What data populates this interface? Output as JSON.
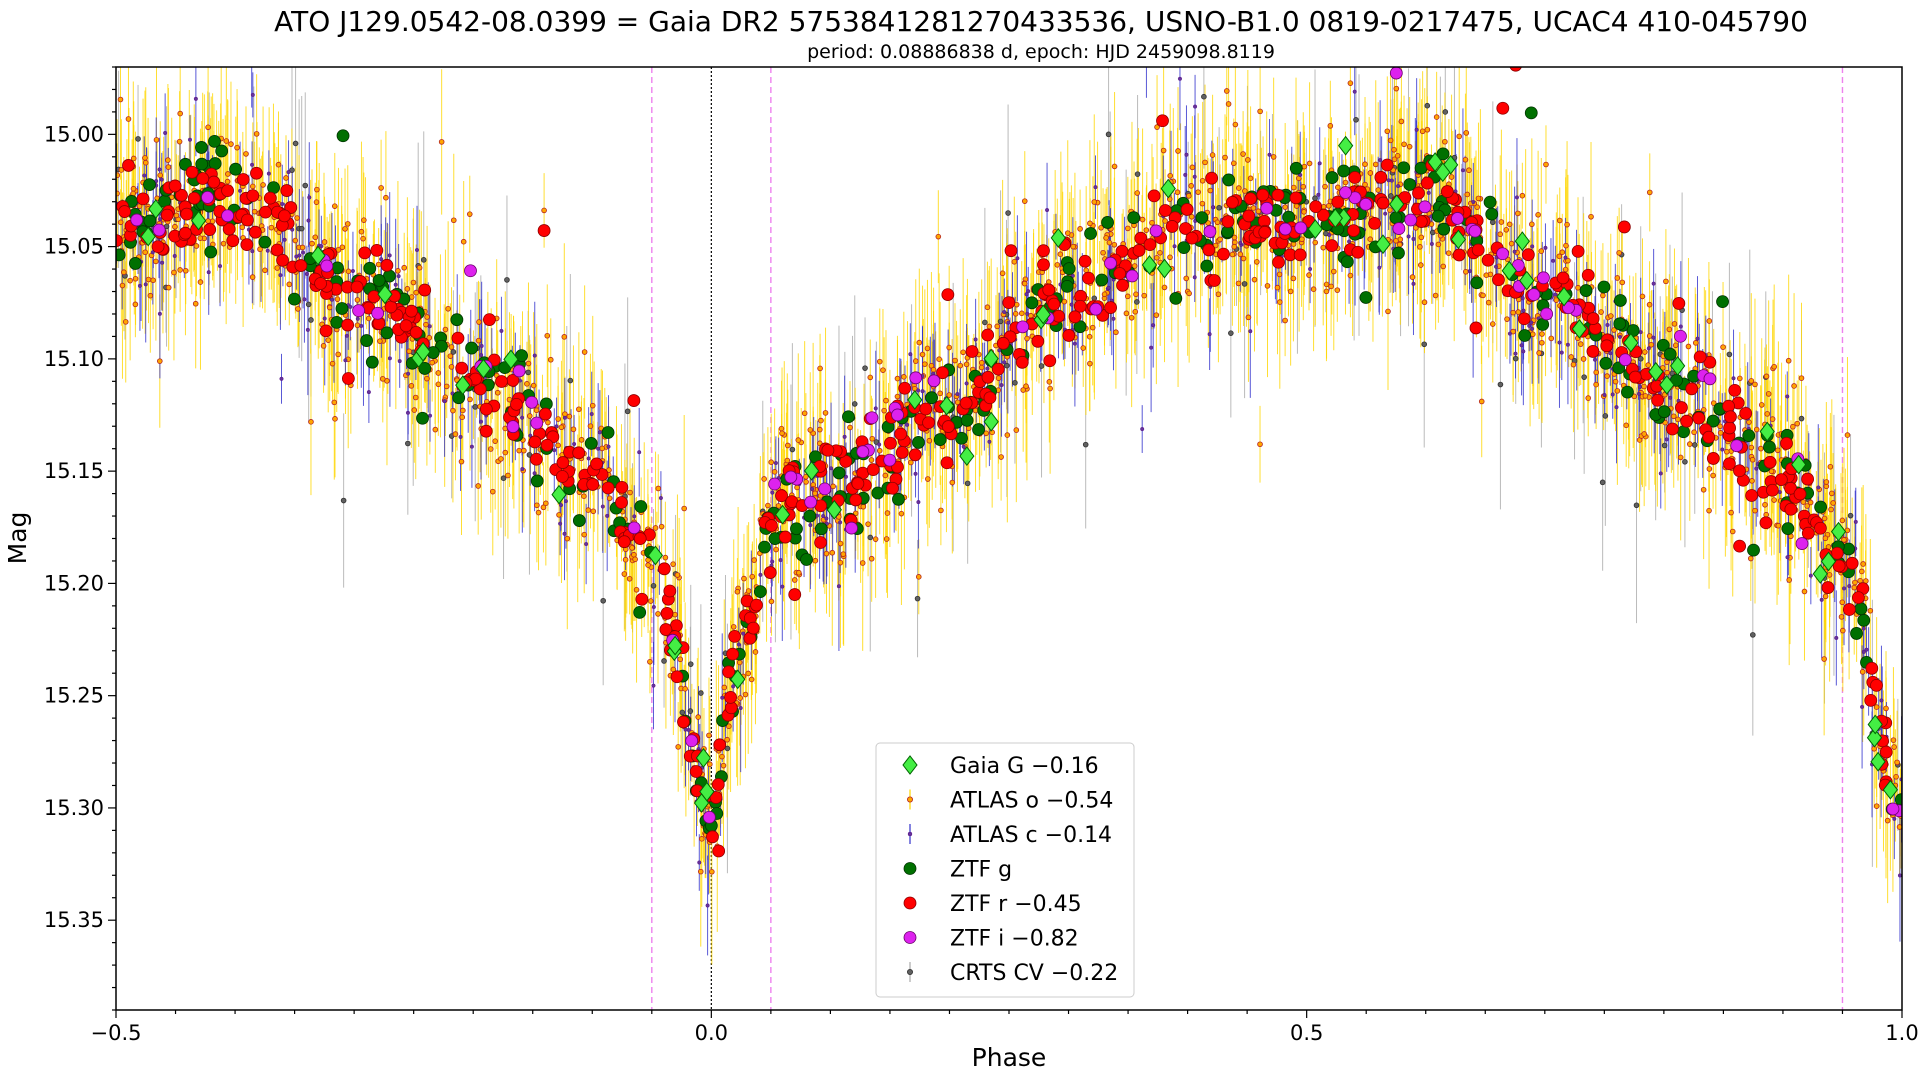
{
  "chart_data": {
    "type": "scatter",
    "title": "ATO J129.0542-08.0399 = Gaia DR2 5753841281270433536, USNO-B1.0 0819-0217475, UCAC4 410-045790",
    "subtitle": "period: 0.08886838 d, epoch: HJD 2459098.8119",
    "xlabel": "Phase",
    "ylabel": "Mag",
    "xlim": [
      -0.5,
      1.0
    ],
    "ylim": [
      15.39,
      14.97
    ],
    "y_inverted": true,
    "grid": false,
    "x_ticks": [
      -0.5,
      0.0,
      0.5,
      1.0
    ],
    "x_tick_labels": [
      "−0.5",
      "0.0",
      "0.5",
      "1.0"
    ],
    "y_ticks": [
      15.0,
      15.05,
      15.1,
      15.15,
      15.2,
      15.25,
      15.3,
      15.35
    ],
    "y_tick_labels": [
      "15.00",
      "15.05",
      "15.10",
      "15.15",
      "15.20",
      "15.25",
      "15.30",
      "15.35"
    ],
    "reference_lines": [
      {
        "x": 0.0,
        "style": "dotted",
        "color": "#000000"
      },
      {
        "x": -0.05,
        "style": "dashed",
        "color": "#ee82ee"
      },
      {
        "x": 0.05,
        "style": "dashed",
        "color": "#ee82ee"
      },
      {
        "x": 0.95,
        "style": "dashed",
        "color": "#ee82ee"
      }
    ],
    "light_curve_model": {
      "phase": [
        0.0,
        0.02,
        0.05,
        0.1,
        0.2,
        0.3,
        0.4,
        0.5,
        0.6,
        0.7,
        0.8,
        0.9,
        0.95,
        1.0
      ],
      "mag": [
        15.3,
        15.24,
        15.17,
        15.16,
        15.12,
        15.07,
        15.04,
        15.04,
        15.03,
        15.07,
        15.11,
        15.15,
        15.19,
        15.3
      ]
    },
    "legend_position": "bottom-center",
    "series": [
      {
        "name": "Gaia G −0.16",
        "marker": "diamond",
        "color": "#44ee44",
        "edge": "#006400",
        "n_points": 60,
        "scatter": 0.012,
        "err": 0
      },
      {
        "name": "ATLAS o −0.54",
        "marker": "small-circle",
        "color": "#ffa500",
        "edge": "#b22222",
        "errcolor": "#ffd700",
        "n_points": 1500,
        "scatter": 0.018,
        "err": 0.028
      },
      {
        "name": "ATLAS c −0.14",
        "marker": "dot",
        "color": "#663399",
        "edge": "#4b0082",
        "errcolor": "#3030cc",
        "n_points": 500,
        "scatter": 0.016,
        "err": 0.02
      },
      {
        "name": "ZTF g",
        "marker": "circle",
        "color": "#007000",
        "edge": "#003300",
        "n_points": 320,
        "scatter": 0.012,
        "err": 0
      },
      {
        "name": "ZTF r −0.45",
        "marker": "circle",
        "color": "#ff0000",
        "edge": "#8b0000",
        "n_points": 520,
        "scatter": 0.01,
        "err": 0
      },
      {
        "name": "ZTF i −0.82",
        "marker": "circle",
        "color": "#dd22ee",
        "edge": "#6a006a",
        "n_points": 70,
        "scatter": 0.013,
        "err": 0
      },
      {
        "name": "CRTS CV −0.22",
        "marker": "small-circle",
        "color": "#606060",
        "edge": "#303030",
        "errcolor": "#aaaaaa",
        "n_points": 140,
        "scatter": 0.03,
        "err": 0.04
      }
    ]
  }
}
